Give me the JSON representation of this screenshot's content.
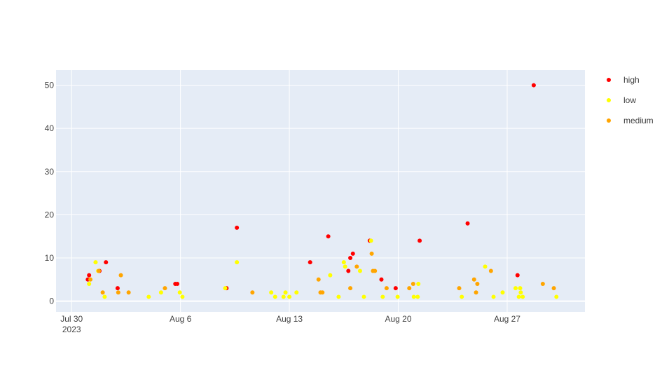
{
  "chart_data": {
    "type": "scatter",
    "title": "",
    "xlabel": "",
    "ylabel": "",
    "x_axis": {
      "type": "date",
      "range": [
        "2023-07-29",
        "2023-09-01"
      ],
      "ticks": [
        {
          "date": "2023-07-30",
          "label": "Jul 30",
          "sublabel": "2023"
        },
        {
          "date": "2023-08-06",
          "label": "Aug 6",
          "sublabel": ""
        },
        {
          "date": "2023-08-13",
          "label": "Aug 13",
          "sublabel": ""
        },
        {
          "date": "2023-08-20",
          "label": "Aug 20",
          "sublabel": ""
        },
        {
          "date": "2023-08-27",
          "label": "Aug 27",
          "sublabel": ""
        }
      ]
    },
    "y_axis": {
      "range": [
        -2.5,
        53.5
      ],
      "ticks": [
        {
          "value": 0,
          "label": "0"
        },
        {
          "value": 10,
          "label": "10"
        },
        {
          "value": 20,
          "label": "20"
        },
        {
          "value": 30,
          "label": "30"
        },
        {
          "value": 40,
          "label": "40"
        },
        {
          "value": 50,
          "label": "50"
        }
      ]
    },
    "grid": true,
    "legend_position": "right",
    "plot_background": "#e5ecf6",
    "series": [
      {
        "name": "high",
        "color": "#ff0000",
        "points": [
          {
            "x": "2023-07-31 01:00",
            "y": 5
          },
          {
            "x": "2023-07-31 03:00",
            "y": 6
          },
          {
            "x": "2023-07-31 19:00",
            "y": 7
          },
          {
            "x": "2023-08-01 05:00",
            "y": 9
          },
          {
            "x": "2023-08-01 23:00",
            "y": 3
          },
          {
            "x": "2023-08-05 16:00",
            "y": 4
          },
          {
            "x": "2023-08-05 19:00",
            "y": 4
          },
          {
            "x": "2023-08-08 23:00",
            "y": 3
          },
          {
            "x": "2023-08-09 15:00",
            "y": 17
          },
          {
            "x": "2023-08-14 08:00",
            "y": 9
          },
          {
            "x": "2023-08-15 12:00",
            "y": 15
          },
          {
            "x": "2023-08-16 19:00",
            "y": 7
          },
          {
            "x": "2023-08-16 22:00",
            "y": 10
          },
          {
            "x": "2023-08-17 02:00",
            "y": 11
          },
          {
            "x": "2023-08-18 04:00",
            "y": 14
          },
          {
            "x": "2023-08-18 22:00",
            "y": 5
          },
          {
            "x": "2023-08-19 20:00",
            "y": 3
          },
          {
            "x": "2023-08-21 09:00",
            "y": 14
          },
          {
            "x": "2023-08-24 11:00",
            "y": 18
          },
          {
            "x": "2023-08-27 16:00",
            "y": 6
          },
          {
            "x": "2023-08-28 17:00",
            "y": 50
          }
        ]
      },
      {
        "name": "low",
        "color": "#ffff00",
        "points": [
          {
            "x": "2023-07-31 03:00",
            "y": 4
          },
          {
            "x": "2023-07-31 13:00",
            "y": 9
          },
          {
            "x": "2023-07-31 17:00",
            "y": 7
          },
          {
            "x": "2023-08-01 03:00",
            "y": 1
          },
          {
            "x": "2023-08-03 23:00",
            "y": 1
          },
          {
            "x": "2023-08-04 18:00",
            "y": 2
          },
          {
            "x": "2023-08-05 23:00",
            "y": 2
          },
          {
            "x": "2023-08-06 03:00",
            "y": 1
          },
          {
            "x": "2023-08-08 21:00",
            "y": 3
          },
          {
            "x": "2023-08-09 15:00",
            "y": 9
          },
          {
            "x": "2023-08-11 20:00",
            "y": 2
          },
          {
            "x": "2023-08-12 02:00",
            "y": 1
          },
          {
            "x": "2023-08-12 15:00",
            "y": 1
          },
          {
            "x": "2023-08-12 18:00",
            "y": 2
          },
          {
            "x": "2023-08-13 00:00",
            "y": 1
          },
          {
            "x": "2023-08-13 11:00",
            "y": 2
          },
          {
            "x": "2023-08-15 15:00",
            "y": 6
          },
          {
            "x": "2023-08-16 04:00",
            "y": 1
          },
          {
            "x": "2023-08-16 12:00",
            "y": 9
          },
          {
            "x": "2023-08-16 14:00",
            "y": 8
          },
          {
            "x": "2023-08-17 13:00",
            "y": 7
          },
          {
            "x": "2023-08-17 19:00",
            "y": 1
          },
          {
            "x": "2023-08-18 06:00",
            "y": 14
          },
          {
            "x": "2023-08-19 00:00",
            "y": 1
          },
          {
            "x": "2023-08-19 23:00",
            "y": 1
          },
          {
            "x": "2023-08-21 00:00",
            "y": 1
          },
          {
            "x": "2023-08-21 06:00",
            "y": 1
          },
          {
            "x": "2023-08-21 07:00",
            "y": 4
          },
          {
            "x": "2023-08-24 02:00",
            "y": 1
          },
          {
            "x": "2023-08-25 14:00",
            "y": 8
          },
          {
            "x": "2023-08-26 03:00",
            "y": 1
          },
          {
            "x": "2023-08-26 17:00",
            "y": 2
          },
          {
            "x": "2023-08-27 13:00",
            "y": 3
          },
          {
            "x": "2023-08-27 18:00",
            "y": 1
          },
          {
            "x": "2023-08-27 20:00",
            "y": 3
          },
          {
            "x": "2023-08-27 21:00",
            "y": 2
          },
          {
            "x": "2023-08-28 00:00",
            "y": 1
          },
          {
            "x": "2023-08-30 04:00",
            "y": 1
          }
        ]
      },
      {
        "name": "medium",
        "color": "#ffa500",
        "points": [
          {
            "x": "2023-07-31 05:00",
            "y": 5
          },
          {
            "x": "2023-07-31 18:00",
            "y": 7
          },
          {
            "x": "2023-08-01 00:00",
            "y": 2
          },
          {
            "x": "2023-08-02 00:00",
            "y": 2
          },
          {
            "x": "2023-08-02 04:00",
            "y": 6
          },
          {
            "x": "2023-08-02 16:00",
            "y": 2
          },
          {
            "x": "2023-08-05 00:00",
            "y": 3
          },
          {
            "x": "2023-08-10 15:00",
            "y": 2
          },
          {
            "x": "2023-08-14 21:00",
            "y": 5
          },
          {
            "x": "2023-08-15 00:00",
            "y": 2
          },
          {
            "x": "2023-08-15 03:00",
            "y": 2
          },
          {
            "x": "2023-08-16 22:00",
            "y": 3
          },
          {
            "x": "2023-08-17 08:00",
            "y": 8
          },
          {
            "x": "2023-08-18 07:00",
            "y": 11
          },
          {
            "x": "2023-08-18 09:00",
            "y": 7
          },
          {
            "x": "2023-08-18 12:00",
            "y": 7
          },
          {
            "x": "2023-08-19 06:00",
            "y": 3
          },
          {
            "x": "2023-08-20 17:00",
            "y": 3
          },
          {
            "x": "2023-08-20 23:00",
            "y": 4
          },
          {
            "x": "2023-08-23 22:00",
            "y": 3
          },
          {
            "x": "2023-08-24 21:00",
            "y": 5
          },
          {
            "x": "2023-08-25 00:00",
            "y": 2
          },
          {
            "x": "2023-08-25 02:00",
            "y": 4
          },
          {
            "x": "2023-08-25 23:00",
            "y": 7
          },
          {
            "x": "2023-08-29 07:00",
            "y": 4
          },
          {
            "x": "2023-08-30 00:00",
            "y": 3
          }
        ]
      }
    ]
  }
}
